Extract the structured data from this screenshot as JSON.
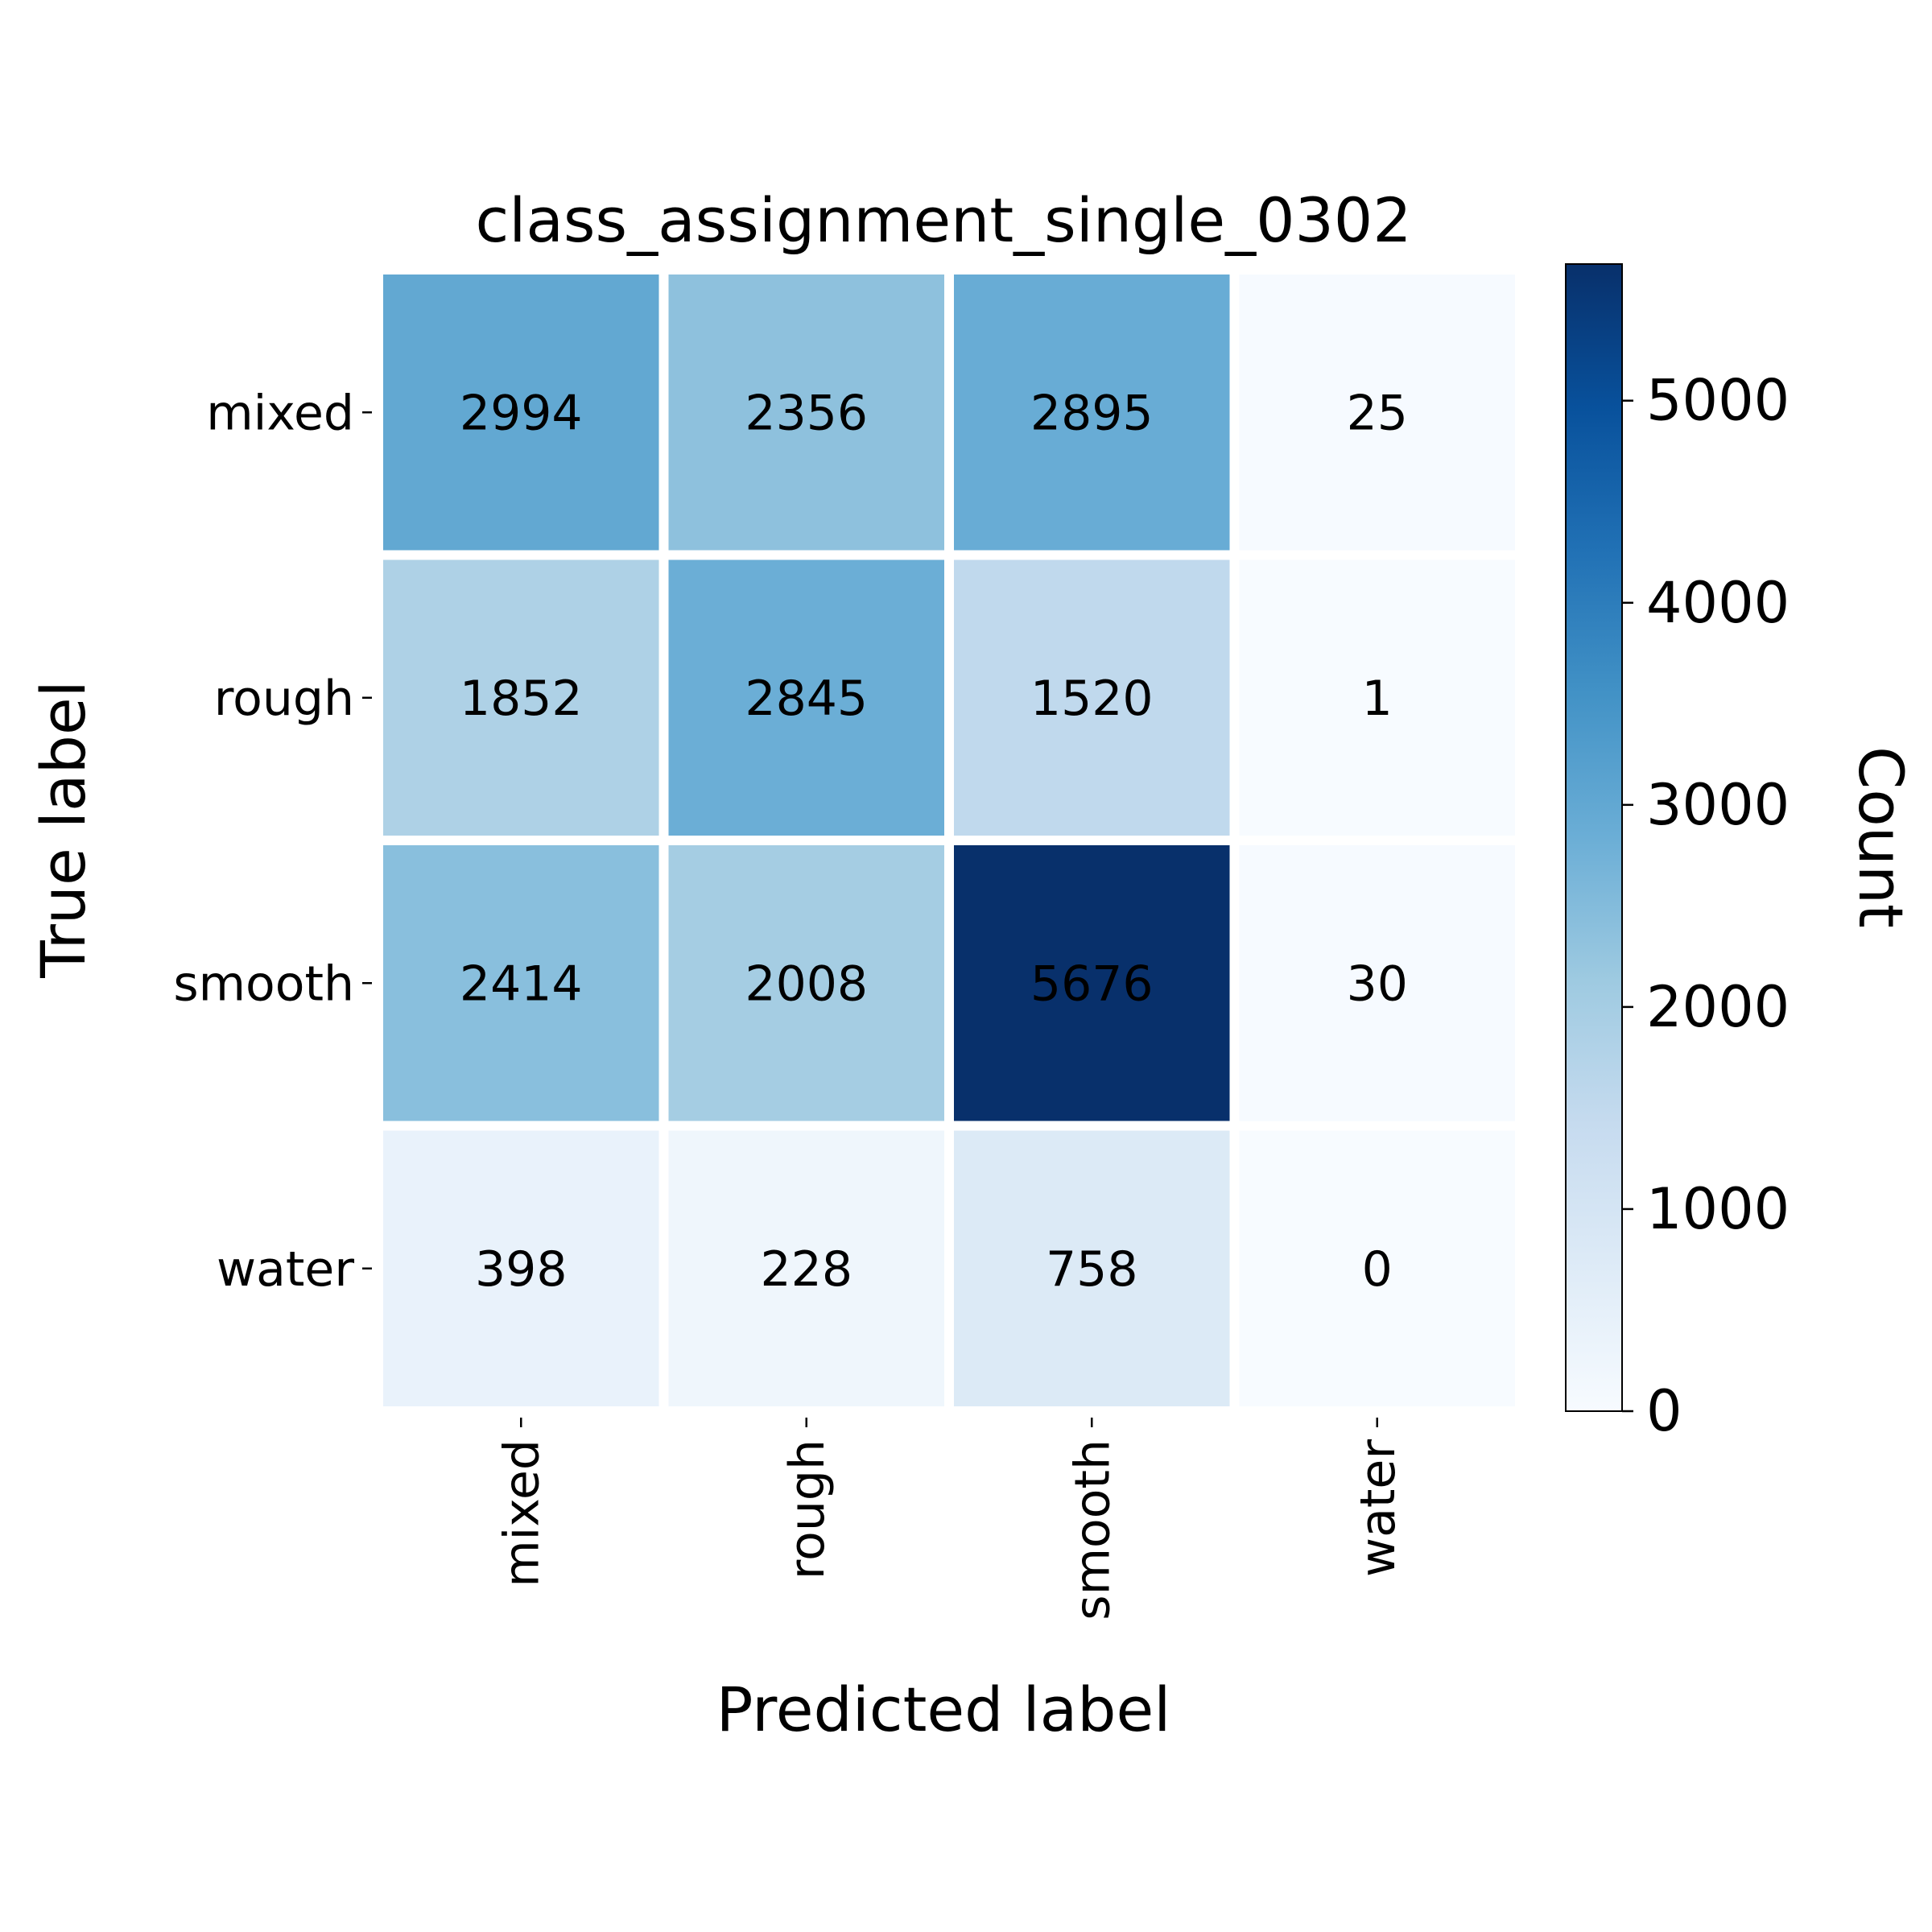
{
  "chart_data": {
    "type": "heatmap",
    "title": "class_assignment_single_0302",
    "xlabel": "Predicted label",
    "ylabel": "True label",
    "x_categories": [
      "mixed",
      "rough",
      "smooth",
      "water"
    ],
    "y_categories": [
      "mixed",
      "rough",
      "smooth",
      "water"
    ],
    "values": [
      [
        2994,
        2356,
        2895,
        25
      ],
      [
        1852,
        2845,
        1520,
        1
      ],
      [
        2414,
        2008,
        5676,
        30
      ],
      [
        398,
        228,
        758,
        0
      ]
    ],
    "colorbar": {
      "label": "Count",
      "range": [
        0,
        5676
      ],
      "ticks": [
        0,
        1000,
        2000,
        3000,
        4000,
        5000
      ],
      "colormap": "Blues",
      "low_color": "#f7fbff",
      "high_color": "#08306b"
    },
    "text_colors": {
      "dark": "#000000",
      "light": "#ffffff"
    },
    "grid": false
  }
}
